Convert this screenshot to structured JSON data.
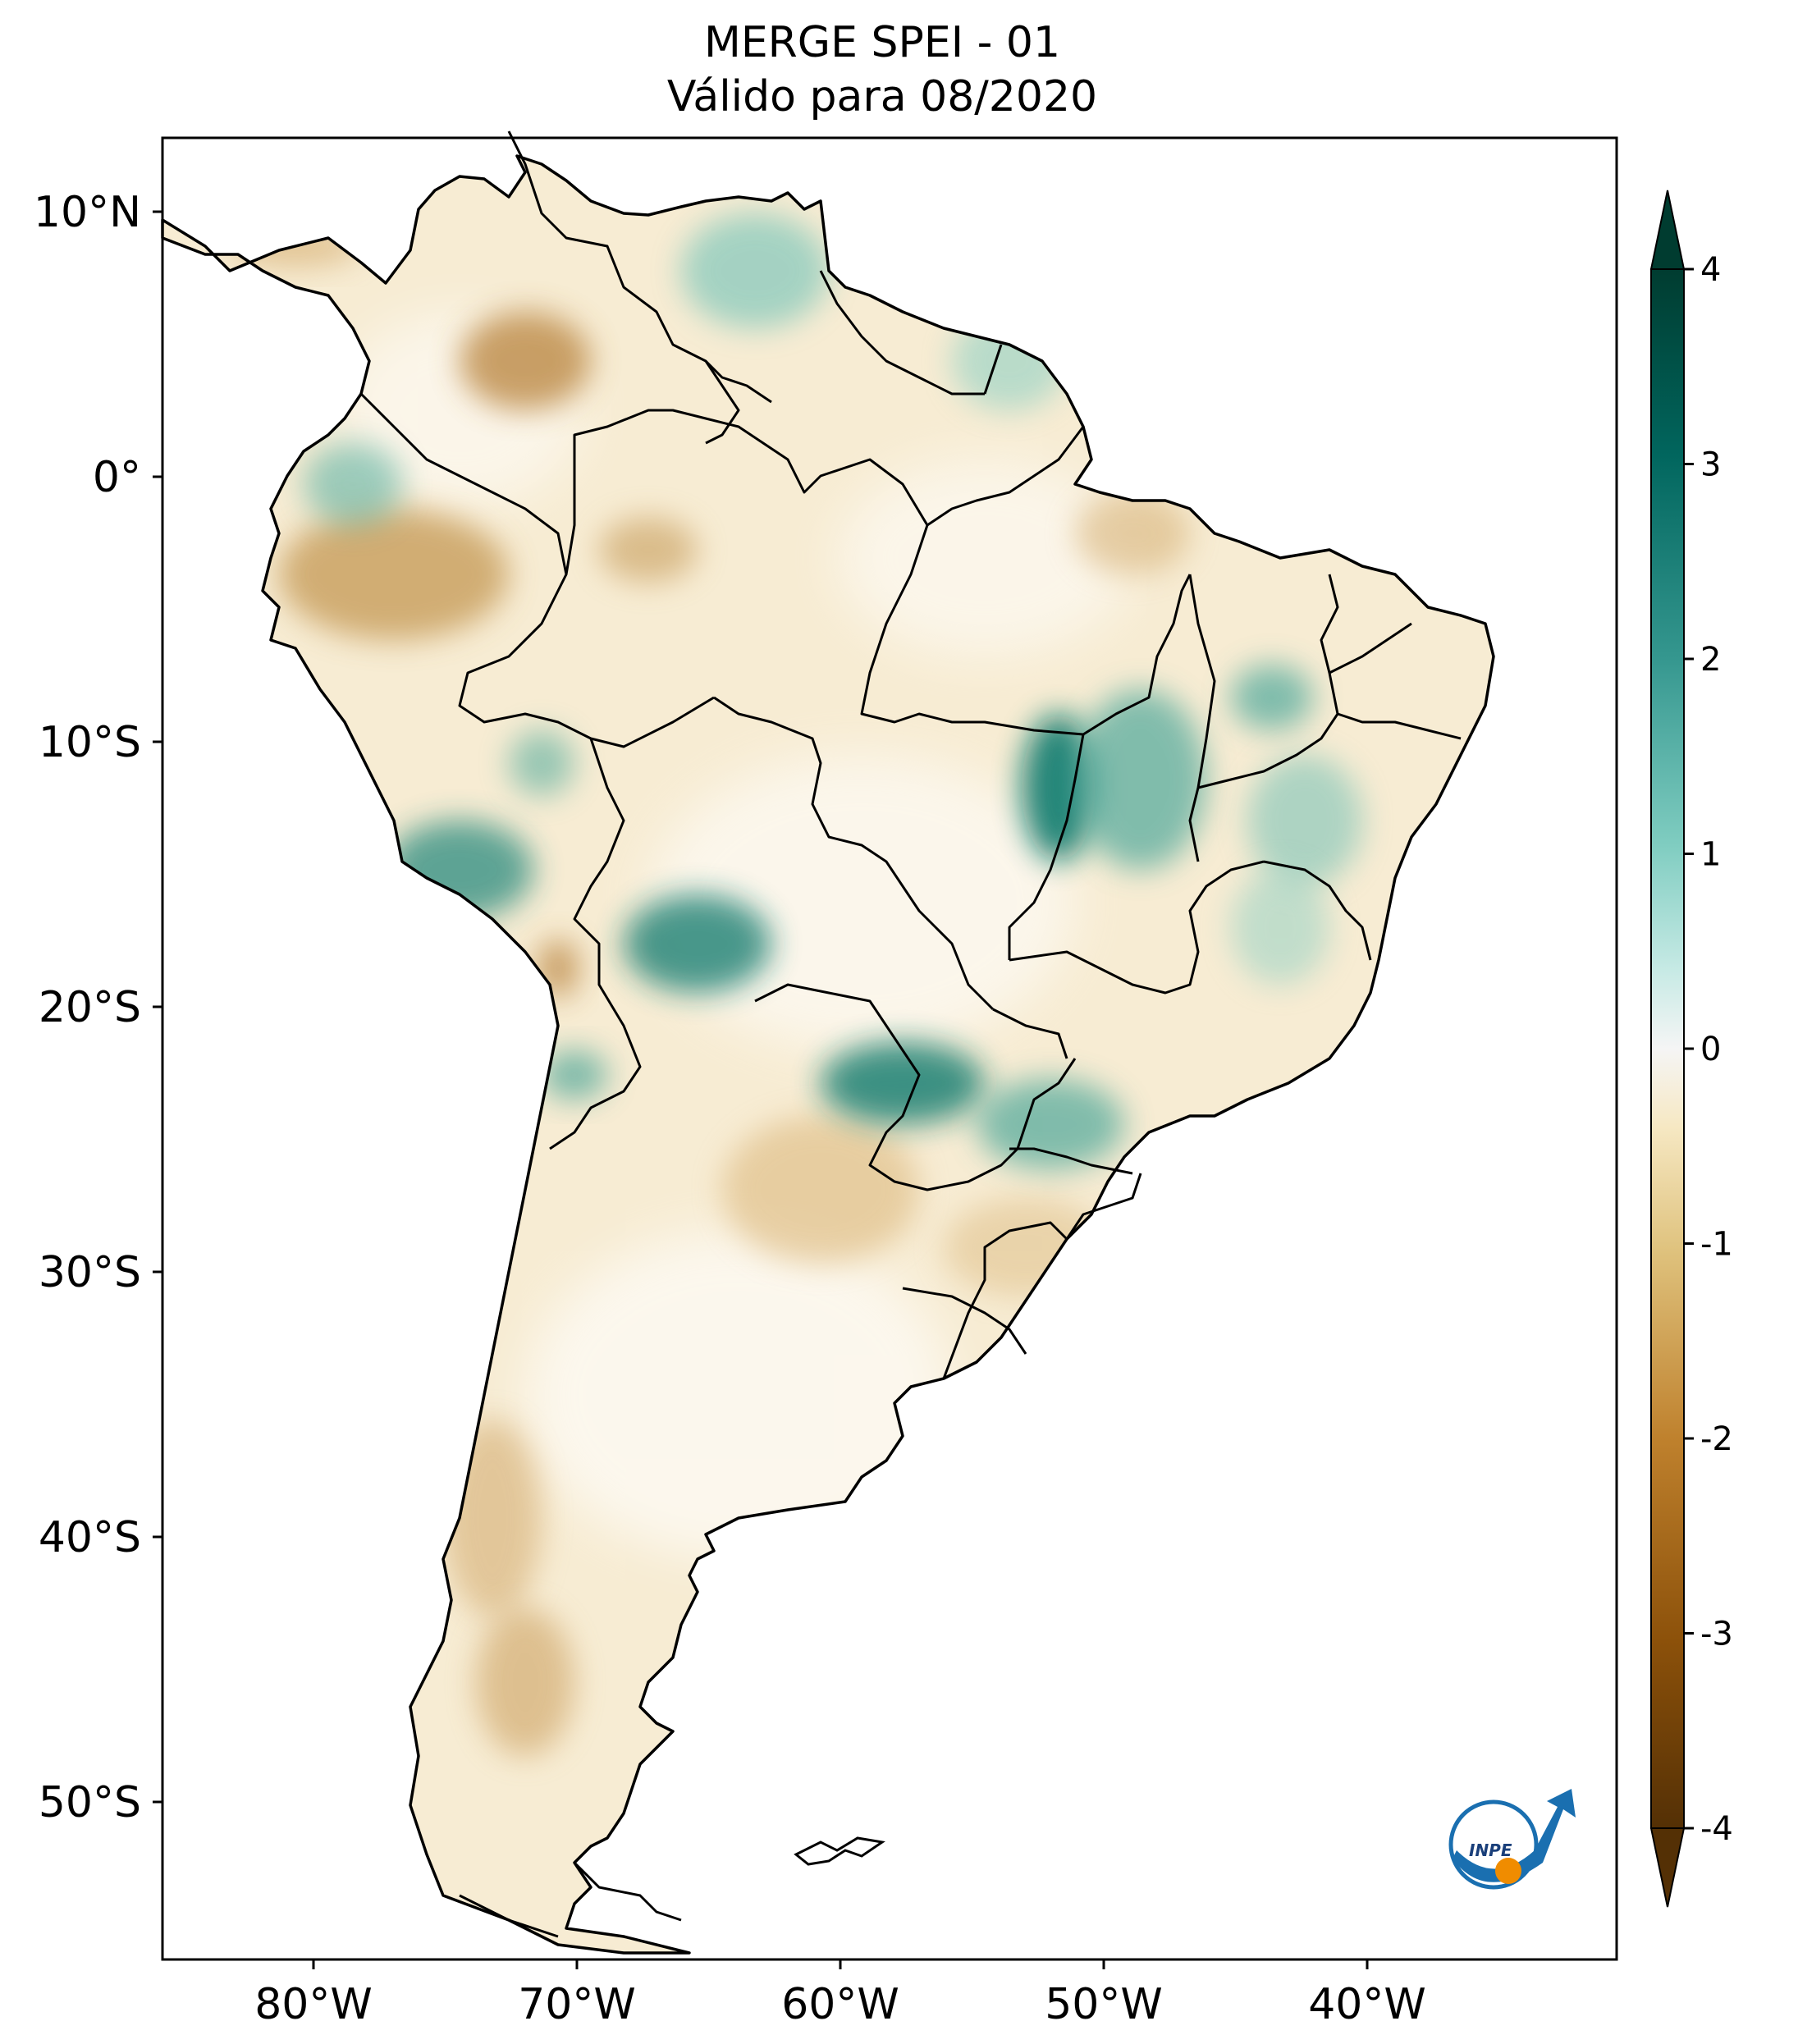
{
  "title": {
    "line1": "MERGE   SPEI - 01",
    "line2": "Válido para 08/2020"
  },
  "map": {
    "lat_labels": [
      "10°N",
      "0°",
      "10°S",
      "20°S",
      "30°S",
      "40°S",
      "50°S"
    ],
    "lon_labels": [
      "80°W",
      "70°W",
      "60°W",
      "50°W",
      "40°W"
    ]
  },
  "colorbar": {
    "min": -4,
    "max": 4,
    "tick_labels": [
      "4",
      "3",
      "2",
      "1",
      "0",
      "-1",
      "-2",
      "-3",
      "-4"
    ],
    "colors": {
      "high": "#003c30",
      "mid": "#ffffff",
      "low": "#543005"
    }
  },
  "logo": {
    "text": "INPE"
  }
}
